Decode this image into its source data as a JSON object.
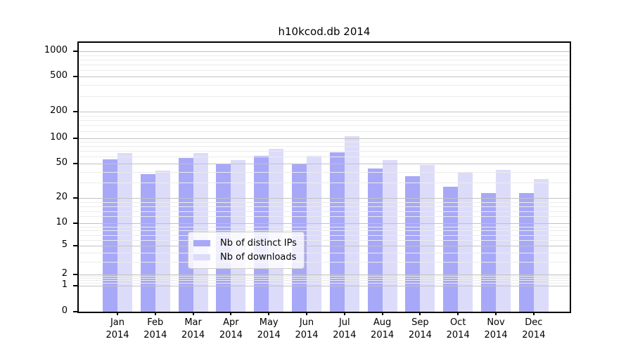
{
  "chart_data": {
    "type": "bar",
    "title": "h10kcod.db 2014",
    "categories": [
      "Jan",
      "Feb",
      "Mar",
      "Apr",
      "May",
      "Jun",
      "Jul",
      "Aug",
      "Sep",
      "Oct",
      "Nov",
      "Dec"
    ],
    "category_year": "2014",
    "series": [
      {
        "name": "Nb of distinct IPs",
        "color": "#a8a8f8",
        "values": [
          56,
          38,
          58,
          50,
          61,
          50,
          68,
          44,
          36,
          27,
          23,
          23
        ]
      },
      {
        "name": "Nb of downloads",
        "color": "#dcdcfa",
        "values": [
          66,
          41,
          67,
          55,
          74,
          61,
          105,
          55,
          48,
          39,
          42,
          33
        ]
      }
    ],
    "y_ticks": [
      0,
      1,
      2,
      5,
      10,
      20,
      50,
      100,
      200,
      500,
      1000
    ],
    "y_scale": "log",
    "ylim": [
      0,
      1300
    ],
    "xlabel": "",
    "ylabel": "",
    "grid": true,
    "legend_position": "lower center"
  },
  "legend": {
    "items": [
      {
        "label": "Nb of distinct IPs",
        "color": "#a8a8f8"
      },
      {
        "label": "Nb of downloads",
        "color": "#dcdcfa"
      }
    ]
  },
  "colors": {
    "bar_ips": "#a8a8f8",
    "bar_downloads": "#dcdcfa",
    "grid_labeled": "#c2c2c2",
    "grid_minor": "#ebebeb",
    "axis": "#000000",
    "background": "#ffffff",
    "legend_border": "#cccccc"
  }
}
